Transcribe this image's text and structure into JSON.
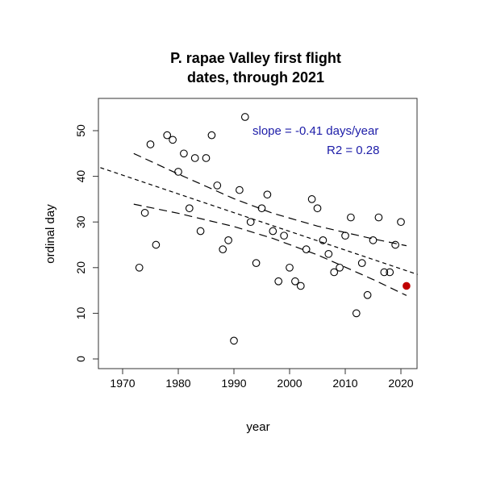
{
  "chart_data": {
    "type": "scatter",
    "title": [
      "P. rapae Valley first flight",
      "dates, through 2021"
    ],
    "xlabel": "year",
    "ylabel": "ordinal day",
    "xlim": [
      1966,
      2023
    ],
    "ylim": [
      -2,
      57
    ],
    "xticks": [
      1970,
      1980,
      1990,
      2000,
      2010,
      2020
    ],
    "yticks": [
      0,
      10,
      20,
      30,
      40,
      50
    ],
    "grid": false,
    "annotations": [
      "slope = -0.41 days/year",
      "R2 = 0.28"
    ],
    "annotation_color": "#1c1ca8",
    "highlight_color": "#c00000",
    "points": [
      [
        1973,
        20
      ],
      [
        1974,
        32
      ],
      [
        1975,
        47
      ],
      [
        1976,
        25
      ],
      [
        1978,
        49
      ],
      [
        1979,
        48
      ],
      [
        1980,
        41
      ],
      [
        1981,
        45
      ],
      [
        1982,
        33
      ],
      [
        1983,
        44
      ],
      [
        1984,
        28
      ],
      [
        1985,
        44
      ],
      [
        1986,
        49
      ],
      [
        1987,
        38
      ],
      [
        1988,
        24
      ],
      [
        1989,
        26
      ],
      [
        1990,
        4
      ],
      [
        1991,
        37
      ],
      [
        1992,
        53
      ],
      [
        1993,
        30
      ],
      [
        1994,
        21
      ],
      [
        1995,
        33
      ],
      [
        1996,
        36
      ],
      [
        1997,
        28
      ],
      [
        1998,
        17
      ],
      [
        1999,
        27
      ],
      [
        2000,
        20
      ],
      [
        2001,
        17
      ],
      [
        2002,
        16
      ],
      [
        2003,
        24
      ],
      [
        2004,
        35
      ],
      [
        2005,
        33
      ],
      [
        2006,
        26
      ],
      [
        2007,
        23
      ],
      [
        2008,
        19
      ],
      [
        2009,
        20
      ],
      [
        2010,
        27
      ],
      [
        2011,
        31
      ],
      [
        2012,
        10
      ],
      [
        2013,
        21
      ],
      [
        2014,
        14
      ],
      [
        2015,
        26
      ],
      [
        2016,
        31
      ],
      [
        2017,
        19
      ],
      [
        2018,
        19
      ],
      [
        2019,
        25
      ],
      [
        2020,
        30
      ]
    ],
    "highlight_point": [
      2021,
      16
    ],
    "fit_line": {
      "x": [
        1966,
        2023
      ],
      "y": [
        41.9,
        18.5
      ]
    },
    "confidence_band": {
      "x": [
        1972,
        1980,
        1990,
        1997,
        2005,
        2015,
        2021
      ],
      "upper": [
        45.0,
        40.5,
        35.1,
        31.9,
        29.1,
        26.3,
        24.8
      ],
      "lower": [
        33.9,
        31.9,
        29.0,
        26.4,
        22.8,
        17.4,
        13.9
      ]
    }
  }
}
